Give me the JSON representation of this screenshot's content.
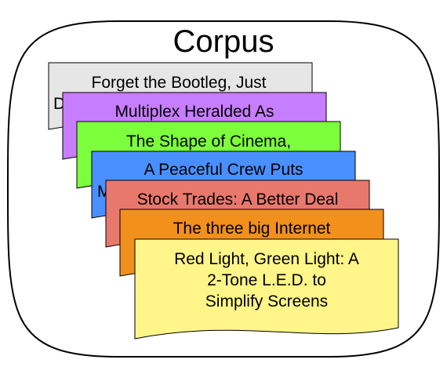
{
  "corpus": {
    "title": "Corpus"
  },
  "documents": [
    {
      "lines": [
        "Forget the Bootleg, Just",
        "D"
      ],
      "color": "#e6e6e6"
    },
    {
      "lines": [
        "Multiplex Heralded As"
      ],
      "color": "#c77dff"
    },
    {
      "lines": [
        "The Shape of Cinema,"
      ],
      "color": "#7dff3c"
    },
    {
      "lines": [
        "A Peaceful Crew Puts",
        "M"
      ],
      "color": "#4a8fff"
    },
    {
      "lines": [
        "Stock Trades: A Better Deal"
      ],
      "color": "#e8786c"
    },
    {
      "lines": [
        "The three big Internet"
      ],
      "color": "#f2901c"
    },
    {
      "lines": [
        "Red Light, Green Light: A",
        "2-Tone L.E.D. to",
        "Simplify Screens"
      ],
      "color": "#fff589"
    }
  ]
}
